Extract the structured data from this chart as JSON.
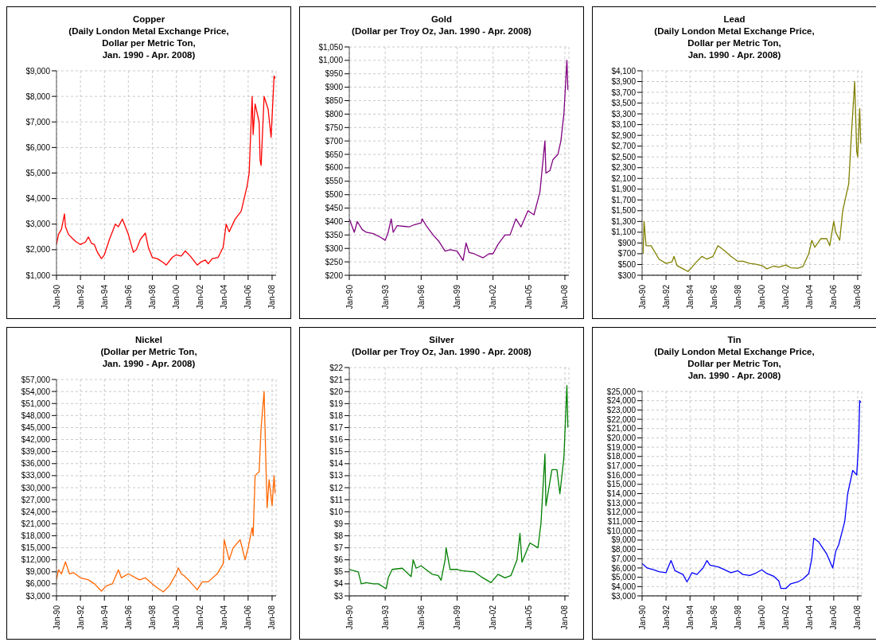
{
  "chart_data": [
    {
      "type": "line",
      "title": "Copper\n(Daily London Metal Exchange Price,\nDollar per Metric Ton,\nJan. 1990 - Apr. 2008)",
      "color": "#ff0000",
      "grid": true,
      "x": [
        "1990-01",
        "1990-03",
        "1990-06",
        "1990-09",
        "1990-10",
        "1991-01",
        "1991-06",
        "1991-09",
        "1992-01",
        "1992-06",
        "1992-09",
        "1992-12",
        "1993-03",
        "1993-06",
        "1993-10",
        "1994-01",
        "1994-06",
        "1994-12",
        "1995-03",
        "1995-07",
        "1995-10",
        "1996-01",
        "1996-06",
        "1996-09",
        "1997-01",
        "1997-06",
        "1997-09",
        "1998-01",
        "1998-06",
        "1998-12",
        "1999-03",
        "1999-09",
        "2000-01",
        "2000-06",
        "2000-10",
        "2001-03",
        "2001-10",
        "2002-01",
        "2002-06",
        "2002-09",
        "2003-01",
        "2003-07",
        "2003-12",
        "2004-03",
        "2004-06",
        "2004-12",
        "2005-06",
        "2005-12",
        "2006-02",
        "2006-05",
        "2006-06",
        "2006-08",
        "2006-12",
        "2007-01",
        "2007-02",
        "2007-05",
        "2007-09",
        "2007-12",
        "2008-02",
        "2008-03",
        "2008-04"
      ],
      "values": [
        2200,
        2600,
        2800,
        3400,
        2900,
        2600,
        2400,
        2300,
        2200,
        2300,
        2500,
        2250,
        2200,
        1900,
        1650,
        1800,
        2400,
        3000,
        2900,
        3200,
        2900,
        2600,
        1900,
        2000,
        2400,
        2650,
        2100,
        1700,
        1650,
        1500,
        1400,
        1700,
        1800,
        1750,
        1950,
        1750,
        1400,
        1500,
        1600,
        1450,
        1650,
        1700,
        2100,
        3000,
        2700,
        3200,
        3500,
        4500,
        5000,
        8000,
        6500,
        7700,
        7000,
        5500,
        5300,
        8000,
        7500,
        6400,
        8000,
        8800,
        8700
      ],
      "xlim": [
        "1990-01",
        "2008-05"
      ],
      "xticks": [
        {
          "value": "1990-01",
          "label": "Jan-90"
        },
        {
          "value": "1992-01",
          "label": "Jan-92"
        },
        {
          "value": "1994-01",
          "label": "Jan-94"
        },
        {
          "value": "1996-01",
          "label": "Jan-96"
        },
        {
          "value": "1998-01",
          "label": "Jan-98"
        },
        {
          "value": "2000-01",
          "label": "Jan-00"
        },
        {
          "value": "2002-01",
          "label": "Jan-02"
        },
        {
          "value": "2004-01",
          "label": "Jan-04"
        },
        {
          "value": "2006-01",
          "label": "Jan-06"
        },
        {
          "value": "2008-01",
          "label": "Jan-08"
        }
      ],
      "ylim": [
        1000,
        9000
      ],
      "yticks": [
        {
          "value": 1000,
          "label": "$1,000"
        },
        {
          "value": 2000,
          "label": "$2,000"
        },
        {
          "value": 3000,
          "label": "$3,000"
        },
        {
          "value": 4000,
          "label": "$4,000"
        },
        {
          "value": 5000,
          "label": "$5,000"
        },
        {
          "value": 6000,
          "label": "$6,000"
        },
        {
          "value": 7000,
          "label": "$7,000"
        },
        {
          "value": 8000,
          "label": "$8,000"
        },
        {
          "value": 9000,
          "label": "$9,000"
        }
      ]
    },
    {
      "type": "line",
      "title": "Gold\n(Dollar per Troy Oz, Jan. 1990 - Apr. 2008)",
      "color": "#800080",
      "grid": true,
      "x": [
        "1990-01",
        "1990-06",
        "1990-09",
        "1991-02",
        "1991-06",
        "1992-01",
        "1992-09",
        "1993-01",
        "1993-04",
        "1993-07",
        "1993-09",
        "1994-01",
        "1995-01",
        "1995-06",
        "1996-01",
        "1996-02",
        "1996-06",
        "1997-01",
        "1997-07",
        "1998-01",
        "1998-06",
        "1999-01",
        "1999-07",
        "1999-10",
        "2000-01",
        "2000-06",
        "2001-03",
        "2001-09",
        "2002-01",
        "2002-06",
        "2003-01",
        "2003-06",
        "2003-12",
        "2004-05",
        "2004-12",
        "2005-06",
        "2005-12",
        "2006-05",
        "2006-06",
        "2006-10",
        "2007-01",
        "2007-06",
        "2007-09",
        "2007-12",
        "2008-03",
        "2008-04"
      ],
      "values": [
        410,
        360,
        400,
        370,
        360,
        355,
        340,
        330,
        360,
        410,
        360,
        385,
        380,
        388,
        395,
        410,
        385,
        350,
        325,
        290,
        295,
        290,
        255,
        320,
        285,
        280,
        265,
        280,
        280,
        315,
        350,
        350,
        410,
        380,
        440,
        425,
        510,
        700,
        580,
        590,
        630,
        650,
        700,
        800,
        1000,
        890
      ],
      "xlim": [
        "1990-01",
        "2008-05"
      ],
      "xticks": [
        {
          "value": "1990-01",
          "label": "Jan-90"
        },
        {
          "value": "1993-01",
          "label": "Jan-93"
        },
        {
          "value": "1996-01",
          "label": "Jan-96"
        },
        {
          "value": "1999-01",
          "label": "Jan-99"
        },
        {
          "value": "2002-01",
          "label": "Jan-02"
        },
        {
          "value": "2005-01",
          "label": "Jan-05"
        },
        {
          "value": "2008-01",
          "label": "Jan-08"
        }
      ],
      "ylim": [
        200,
        1050
      ],
      "yticks": [
        {
          "value": 200,
          "label": "$200"
        },
        {
          "value": 250,
          "label": "$250"
        },
        {
          "value": 300,
          "label": "$300"
        },
        {
          "value": 350,
          "label": "$350"
        },
        {
          "value": 400,
          "label": "$400"
        },
        {
          "value": 450,
          "label": "$450"
        },
        {
          "value": 500,
          "label": "$500"
        },
        {
          "value": 550,
          "label": "$550"
        },
        {
          "value": 600,
          "label": "$600"
        },
        {
          "value": 650,
          "label": "$650"
        },
        {
          "value": 700,
          "label": "$700"
        },
        {
          "value": 750,
          "label": "$750"
        },
        {
          "value": 800,
          "label": "$800"
        },
        {
          "value": 850,
          "label": "$850"
        },
        {
          "value": 900,
          "label": "$900"
        },
        {
          "value": 950,
          "label": "$950"
        },
        {
          "value": 1000,
          "label": "$1,000"
        },
        {
          "value": 1050,
          "label": "$1,050"
        }
      ]
    },
    {
      "type": "line",
      "title": "Lead\n(Daily London Metal Exchange Price,\nDollar per Metric Ton,\nJan. 1990 - Apr. 2008)",
      "color": "#808000",
      "grid": true,
      "x": [
        "1990-02",
        "1990-03",
        "1990-05",
        "1990-10",
        "1991-06",
        "1992-01",
        "1992-07",
        "1992-09",
        "1992-12",
        "1993-06",
        "1993-11",
        "1994-03",
        "1994-06",
        "1995-01",
        "1995-06",
        "1995-12",
        "1996-05",
        "1996-12",
        "1997-06",
        "1998-01",
        "1998-06",
        "1999-01",
        "1999-06",
        "2000-01",
        "2000-06",
        "2001-01",
        "2001-06",
        "2002-01",
        "2002-06",
        "2003-01",
        "2003-06",
        "2003-12",
        "2004-03",
        "2004-06",
        "2004-12",
        "2005-06",
        "2005-09",
        "2006-01",
        "2006-03",
        "2006-07",
        "2006-10",
        "2007-01",
        "2007-04",
        "2007-07",
        "2007-10",
        "2007-12",
        "2008-01",
        "2008-03",
        "2008-04"
      ],
      "values": [
        700,
        1300,
        850,
        850,
        600,
        520,
        550,
        650,
        480,
        420,
        370,
        450,
        520,
        650,
        600,
        650,
        850,
        750,
        650,
        560,
        560,
        520,
        510,
        480,
        420,
        470,
        450,
        490,
        440,
        430,
        460,
        700,
        950,
        820,
        980,
        980,
        850,
        1300,
        1100,
        950,
        1500,
        1750,
        2000,
        3000,
        3900,
        2600,
        2500,
        3400,
        2750
      ],
      "xlim": [
        "1990-01",
        "2008-05"
      ],
      "xticks": [
        {
          "value": "1990-01",
          "label": "Jan-90"
        },
        {
          "value": "1992-01",
          "label": "Jan-92"
        },
        {
          "value": "1994-01",
          "label": "Jan-94"
        },
        {
          "value": "1996-01",
          "label": "Jan-96"
        },
        {
          "value": "1998-01",
          "label": "Jan-98"
        },
        {
          "value": "2000-01",
          "label": "Jan-00"
        },
        {
          "value": "2002-01",
          "label": "Jan-02"
        },
        {
          "value": "2004-01",
          "label": "Jan-04"
        },
        {
          "value": "2006-01",
          "label": "Jan-06"
        },
        {
          "value": "2008-01",
          "label": "Jan-08"
        }
      ],
      "ylim": [
        300,
        4100
      ],
      "yticks": [
        {
          "value": 300,
          "label": "$300"
        },
        {
          "value": 500,
          "label": "$500"
        },
        {
          "value": 700,
          "label": "$700"
        },
        {
          "value": 900,
          "label": "$900"
        },
        {
          "value": 1100,
          "label": "$1,100"
        },
        {
          "value": 1300,
          "label": "$1,300"
        },
        {
          "value": 1500,
          "label": "$1,500"
        },
        {
          "value": 1700,
          "label": "$1,700"
        },
        {
          "value": 1900,
          "label": "$1,900"
        },
        {
          "value": 2100,
          "label": "$2,100"
        },
        {
          "value": 2300,
          "label": "$2,300"
        },
        {
          "value": 2500,
          "label": "$2,500"
        },
        {
          "value": 2700,
          "label": "$2,700"
        },
        {
          "value": 2900,
          "label": "$2,900"
        },
        {
          "value": 3100,
          "label": "$3,100"
        },
        {
          "value": 3300,
          "label": "$3,300"
        },
        {
          "value": 3500,
          "label": "$3,500"
        },
        {
          "value": 3700,
          "label": "$3,700"
        },
        {
          "value": 3900,
          "label": "$3,900"
        },
        {
          "value": 4100,
          "label": "$4,100"
        }
      ]
    },
    {
      "type": "line",
      "title": "Nickel\n(Dollar per Metric Ton,\nJan. 1990 - Apr. 2008)",
      "color": "#ff6600",
      "grid": true,
      "x": [
        "1990-01",
        "1990-03",
        "1990-06",
        "1990-10",
        "1991-02",
        "1991-06",
        "1992-01",
        "1992-09",
        "1993-03",
        "1993-10",
        "1994-03",
        "1994-09",
        "1995-03",
        "1995-06",
        "1996-01",
        "1996-12",
        "1997-06",
        "1998-01",
        "1998-06",
        "1998-12",
        "1999-06",
        "2000-01",
        "2000-03",
        "2000-06",
        "2000-09",
        "2001-03",
        "2001-10",
        "2002-03",
        "2002-09",
        "2003-06",
        "2003-12",
        "2004-01",
        "2004-06",
        "2004-10",
        "2005-05",
        "2005-10",
        "2006-01",
        "2006-05",
        "2006-06",
        "2006-08",
        "2006-12",
        "2007-02",
        "2007-05",
        "2007-07",
        "2007-08",
        "2007-10",
        "2008-01",
        "2008-03",
        "2008-04"
      ],
      "values": [
        7000,
        9500,
        8500,
        11500,
        8500,
        8800,
        7500,
        7000,
        6000,
        4200,
        5500,
        6000,
        9500,
        7500,
        8500,
        7000,
        7500,
        6000,
        5000,
        4000,
        5500,
        8500,
        10000,
        8500,
        8000,
        6500,
        4500,
        6500,
        6500,
        8500,
        11000,
        17000,
        12000,
        15000,
        17000,
        12000,
        15000,
        20000,
        18000,
        33000,
        34000,
        45000,
        54000,
        34000,
        25000,
        32000,
        25500,
        33000,
        28500
      ],
      "xlim": [
        "1990-01",
        "2008-05"
      ],
      "xticks": [
        {
          "value": "1990-01",
          "label": "Jan-90"
        },
        {
          "value": "1992-01",
          "label": "Jan-92"
        },
        {
          "value": "1994-01",
          "label": "Jan-94"
        },
        {
          "value": "1996-01",
          "label": "Jan-96"
        },
        {
          "value": "1998-01",
          "label": "Jan-98"
        },
        {
          "value": "2000-01",
          "label": "Jan-00"
        },
        {
          "value": "2002-01",
          "label": "Jan-02"
        },
        {
          "value": "2004-01",
          "label": "Jan-04"
        },
        {
          "value": "2006-01",
          "label": "Jan-06"
        },
        {
          "value": "2008-01",
          "label": "Jan-08"
        }
      ],
      "ylim": [
        3000,
        57000
      ],
      "yticks": [
        {
          "value": 3000,
          "label": "$3,000"
        },
        {
          "value": 6000,
          "label": "$6,000"
        },
        {
          "value": 9000,
          "label": "$9,000"
        },
        {
          "value": 12000,
          "label": "$12,000"
        },
        {
          "value": 15000,
          "label": "$15,000"
        },
        {
          "value": 18000,
          "label": "$18,000"
        },
        {
          "value": 21000,
          "label": "$21,000"
        },
        {
          "value": 24000,
          "label": "$24,000"
        },
        {
          "value": 27000,
          "label": "$27,000"
        },
        {
          "value": 30000,
          "label": "$30,000"
        },
        {
          "value": 33000,
          "label": "$33,000"
        },
        {
          "value": 36000,
          "label": "$36,000"
        },
        {
          "value": 39000,
          "label": "$39,000"
        },
        {
          "value": 42000,
          "label": "$42,000"
        },
        {
          "value": 45000,
          "label": "$45,000"
        },
        {
          "value": 48000,
          "label": "$48,000"
        },
        {
          "value": 51000,
          "label": "$51,000"
        },
        {
          "value": 54000,
          "label": "$54,000"
        },
        {
          "value": 57000,
          "label": "$57,000"
        }
      ]
    },
    {
      "type": "line",
      "title": "Silver\n(Dollar per Troy Oz, Jan. 1990 - Apr. 2008)",
      "color": "#008000",
      "grid": true,
      "x": [
        "1990-01",
        "1990-10",
        "1991-01",
        "1991-06",
        "1992-01",
        "1992-06",
        "1993-02",
        "1993-04",
        "1993-08",
        "1994-06",
        "1995-03",
        "1995-05",
        "1995-08",
        "1996-01",
        "1996-12",
        "1997-06",
        "1997-09",
        "1998-01",
        "1998-02",
        "1998-06",
        "1999-01",
        "1999-06",
        "2000-06",
        "2001-01",
        "2001-11",
        "2002-06",
        "2003-01",
        "2003-07",
        "2004-01",
        "2004-04",
        "2004-06",
        "2004-12",
        "2005-02",
        "2005-10",
        "2006-01",
        "2006-05",
        "2006-06",
        "2006-12",
        "2007-05",
        "2007-08",
        "2007-12",
        "2008-03",
        "2008-04"
      ],
      "values": [
        5.2,
        5.0,
        4.0,
        4.1,
        4.0,
        4.0,
        3.6,
        4.5,
        5.2,
        5.3,
        4.6,
        6.0,
        5.3,
        5.5,
        4.8,
        4.7,
        4.3,
        6.0,
        7.0,
        5.2,
        5.2,
        5.1,
        5.0,
        4.6,
        4.1,
        4.8,
        4.5,
        4.7,
        6.0,
        8.2,
        5.8,
        7.0,
        7.4,
        7.0,
        9.0,
        14.8,
        10.5,
        13.5,
        13.5,
        11.5,
        14.5,
        20.5,
        17.0
      ],
      "xlim": [
        "1990-01",
        "2008-05"
      ],
      "xticks": [
        {
          "value": "1990-01",
          "label": "Jan-90"
        },
        {
          "value": "1993-01",
          "label": "Jan-93"
        },
        {
          "value": "1996-01",
          "label": "Jan-96"
        },
        {
          "value": "1999-01",
          "label": "Jan-99"
        },
        {
          "value": "2002-01",
          "label": "Jan-02"
        },
        {
          "value": "2005-01",
          "label": "Jan-05"
        },
        {
          "value": "2008-01",
          "label": "Jan-08"
        }
      ],
      "ylim": [
        3,
        22
      ],
      "yticks": [
        {
          "value": 3,
          "label": "$3"
        },
        {
          "value": 4,
          "label": "$4"
        },
        {
          "value": 5,
          "label": "$5"
        },
        {
          "value": 6,
          "label": "$6"
        },
        {
          "value": 7,
          "label": "$7"
        },
        {
          "value": 8,
          "label": "$8"
        },
        {
          "value": 9,
          "label": "$9"
        },
        {
          "value": 10,
          "label": "$10"
        },
        {
          "value": 11,
          "label": "$11"
        },
        {
          "value": 12,
          "label": "$12"
        },
        {
          "value": 13,
          "label": "$13"
        },
        {
          "value": 14,
          "label": "$14"
        },
        {
          "value": 15,
          "label": "$15"
        },
        {
          "value": 16,
          "label": "$16"
        },
        {
          "value": 17,
          "label": "$17"
        },
        {
          "value": 18,
          "label": "$18"
        },
        {
          "value": 19,
          "label": "$19"
        },
        {
          "value": 20,
          "label": "$20"
        },
        {
          "value": 21,
          "label": "$21"
        },
        {
          "value": 22,
          "label": "$22"
        }
      ]
    },
    {
      "type": "line",
      "title": "Tin\n(Daily London Metal Exchange Price,\nDollar per Metric Ton,\nJan. 1990 - Apr. 2008)",
      "color": "#0000ff",
      "grid": true,
      "x": [
        "1990-01",
        "1990-06",
        "1991-01",
        "1991-06",
        "1992-01",
        "1992-06",
        "1992-10",
        "1993-06",
        "1993-10",
        "1994-03",
        "1994-08",
        "1995-02",
        "1995-06",
        "1995-09",
        "1996-06",
        "1997-06",
        "1998-01",
        "1998-06",
        "1999-01",
        "1999-06",
        "2000-01",
        "2000-06",
        "2001-01",
        "2001-06",
        "2001-08",
        "2002-01",
        "2002-06",
        "2003-01",
        "2003-06",
        "2003-12",
        "2004-03",
        "2004-05",
        "2004-10",
        "2005-01",
        "2005-06",
        "2005-12",
        "2006-03",
        "2006-06",
        "2006-12",
        "2007-03",
        "2007-08",
        "2007-12",
        "2008-02",
        "2008-03",
        "2008-04"
      ],
      "values": [
        6500,
        6000,
        5800,
        5600,
        5500,
        6800,
        5700,
        5300,
        4500,
        5500,
        5300,
        6000,
        6800,
        6300,
        6100,
        5500,
        5700,
        5300,
        5200,
        5400,
        5800,
        5400,
        5100,
        4600,
        3800,
        3800,
        4300,
        4500,
        4800,
        5400,
        7000,
        9200,
        8800,
        8300,
        7500,
        6000,
        7800,
        8500,
        11000,
        14000,
        16500,
        16000,
        19500,
        24000,
        23800
      ],
      "xlim": [
        "1990-01",
        "2008-05"
      ],
      "xticks": [
        {
          "value": "1990-01",
          "label": "Jan-90"
        },
        {
          "value": "1992-01",
          "label": "Jan-92"
        },
        {
          "value": "1994-01",
          "label": "Jan-94"
        },
        {
          "value": "1996-01",
          "label": "Jan-96"
        },
        {
          "value": "1998-01",
          "label": "Jan-98"
        },
        {
          "value": "2000-01",
          "label": "Jan-00"
        },
        {
          "value": "2002-01",
          "label": "Jan-02"
        },
        {
          "value": "2004-01",
          "label": "Jan-04"
        },
        {
          "value": "2006-01",
          "label": "Jan-06"
        },
        {
          "value": "2008-01",
          "label": "Jan-08"
        }
      ],
      "ylim": [
        3000,
        25000
      ],
      "yticks": [
        {
          "value": 3000,
          "label": "$3,000"
        },
        {
          "value": 4000,
          "label": "$4,000"
        },
        {
          "value": 5000,
          "label": "$5,000"
        },
        {
          "value": 6000,
          "label": "$6,000"
        },
        {
          "value": 7000,
          "label": "$7,000"
        },
        {
          "value": 8000,
          "label": "$8,000"
        },
        {
          "value": 9000,
          "label": "$9,000"
        },
        {
          "value": 10000,
          "label": "$10,000"
        },
        {
          "value": 11000,
          "label": "$11,000"
        },
        {
          "value": 12000,
          "label": "$12,000"
        },
        {
          "value": 13000,
          "label": "$13,000"
        },
        {
          "value": 14000,
          "label": "$14,000"
        },
        {
          "value": 15000,
          "label": "$15,000"
        },
        {
          "value": 16000,
          "label": "$16,000"
        },
        {
          "value": 17000,
          "label": "$17,000"
        },
        {
          "value": 18000,
          "label": "$18,000"
        },
        {
          "value": 19000,
          "label": "$19,000"
        },
        {
          "value": 20000,
          "label": "$20,000"
        },
        {
          "value": 21000,
          "label": "$21,000"
        },
        {
          "value": 22000,
          "label": "$22,000"
        },
        {
          "value": 23000,
          "label": "$23,000"
        },
        {
          "value": 24000,
          "label": "$24,000"
        },
        {
          "value": 25000,
          "label": "$25,000"
        }
      ]
    }
  ]
}
